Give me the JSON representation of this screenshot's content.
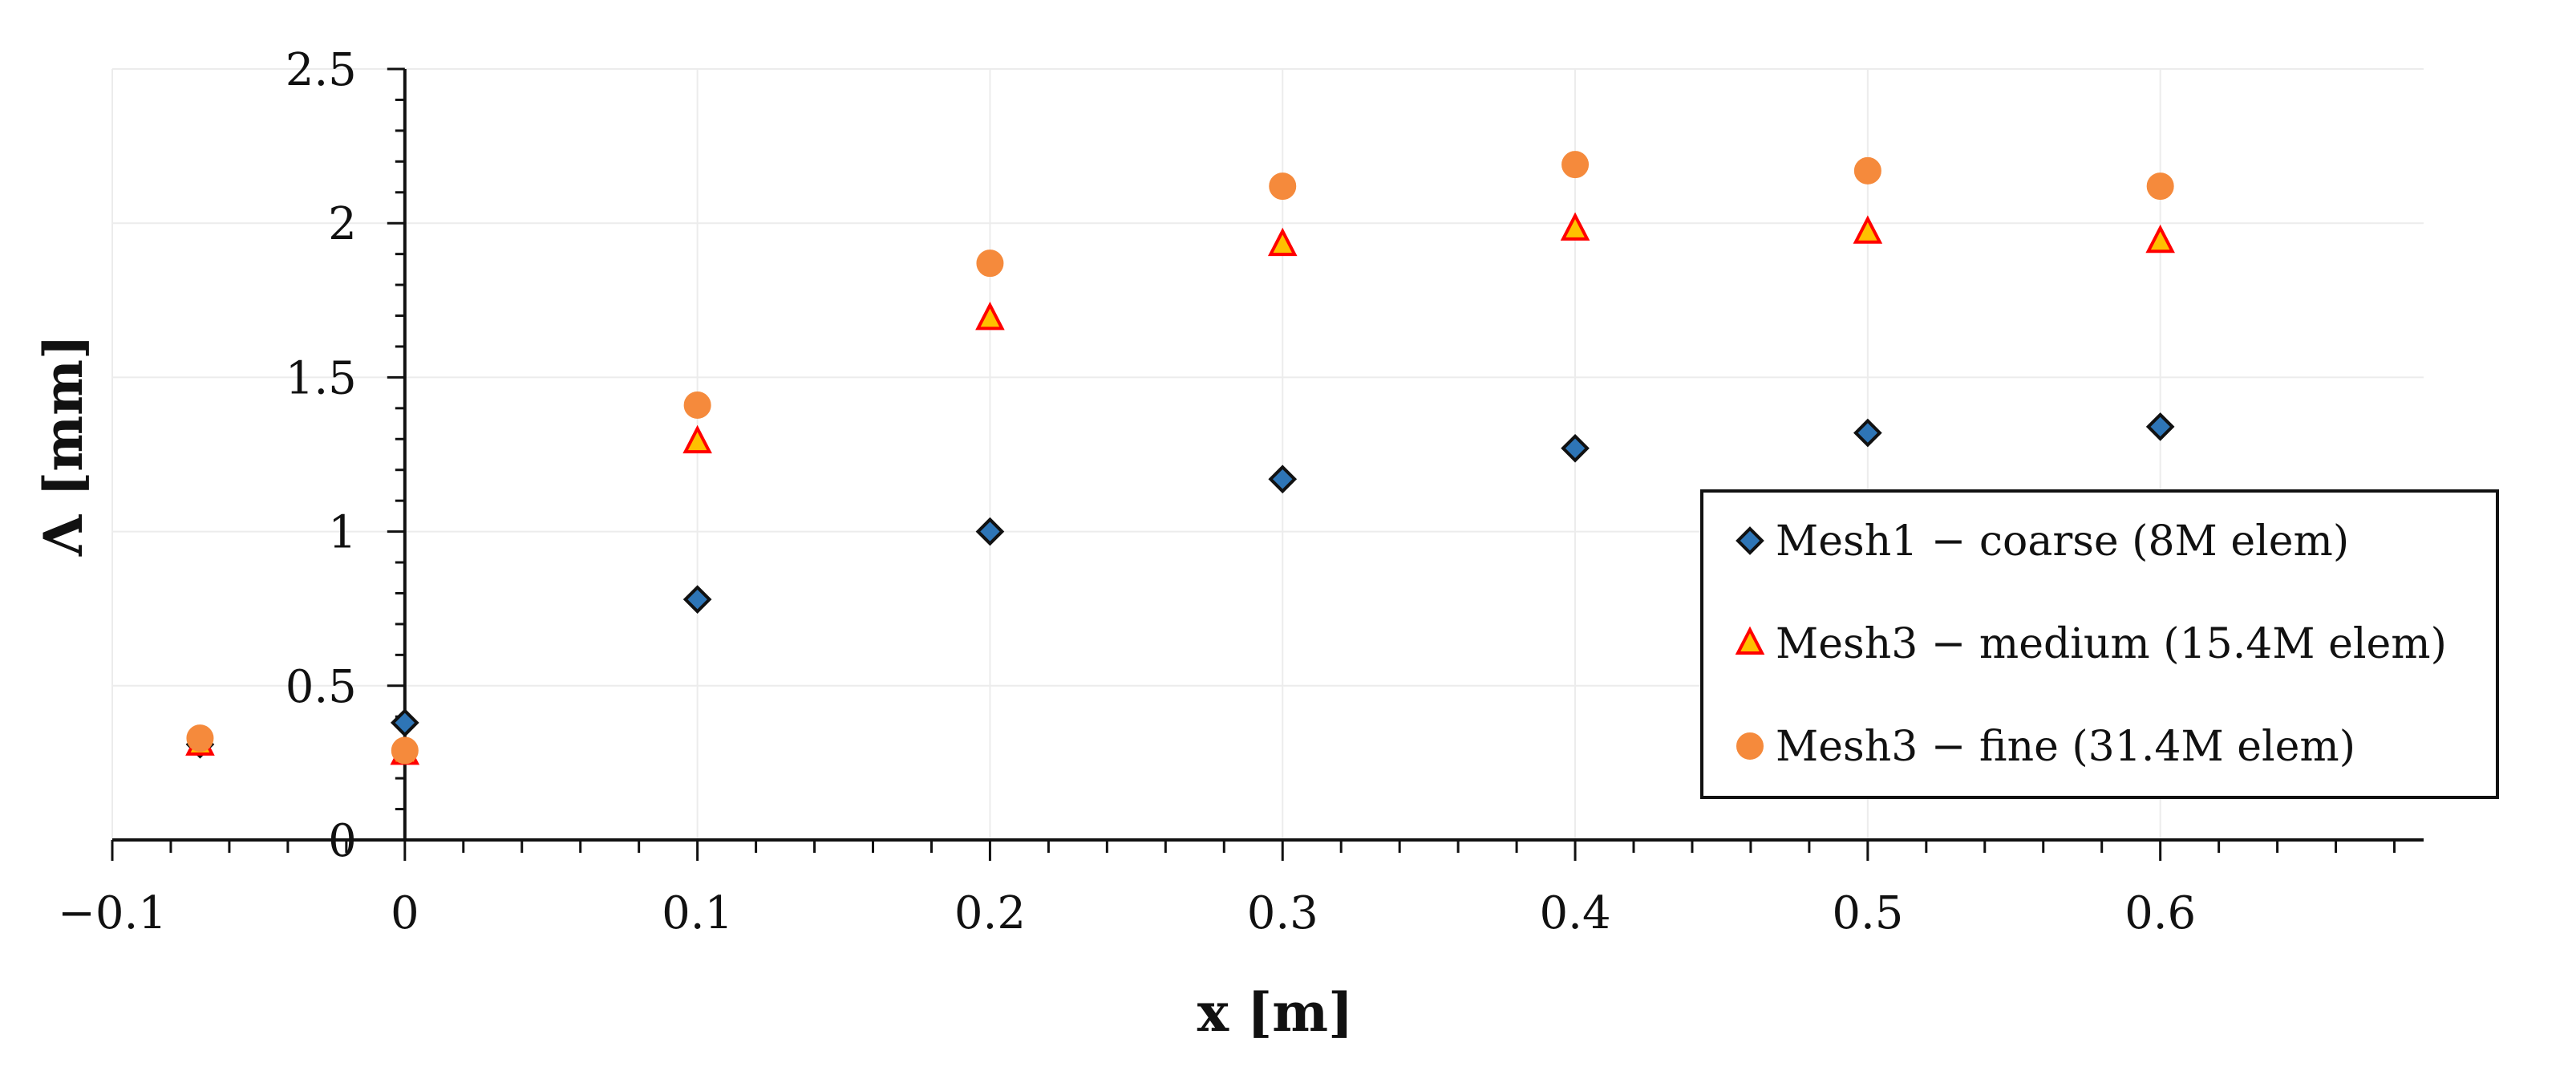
{
  "chart_data": {
    "type": "scatter",
    "title": "",
    "xlabel": "x [m]",
    "ylabel": "Λ [mm]",
    "xlim": [
      -0.1,
      0.69
    ],
    "ylim": [
      0,
      2.5
    ],
    "x_ticks": [
      -0.1,
      0,
      0.1,
      0.2,
      0.3,
      0.4,
      0.5,
      0.6
    ],
    "x_tick_labels": [
      "−0.1",
      "0",
      "0.1",
      "0.2",
      "0.3",
      "0.4",
      "0.5",
      "0.6"
    ],
    "y_ticks": [
      0,
      0.5,
      1,
      1.5,
      2,
      2.5
    ],
    "y_tick_labels": [
      "0",
      "0.5",
      "1",
      "1.5",
      "2",
      "2.5"
    ],
    "grid": true,
    "legend_position": "right",
    "series": [
      {
        "name": "Mesh1 − coarse (8M elem)",
        "marker": "diamond",
        "color": "#2E75B6",
        "edge_color": "#111111",
        "points": [
          {
            "x": -0.07,
            "y": 0.31
          },
          {
            "x": 0.0,
            "y": 0.38
          },
          {
            "x": 0.1,
            "y": 0.78
          },
          {
            "x": 0.2,
            "y": 1.0
          },
          {
            "x": 0.3,
            "y": 1.17
          },
          {
            "x": 0.4,
            "y": 1.27
          },
          {
            "x": 0.5,
            "y": 1.32
          },
          {
            "x": 0.6,
            "y": 1.34
          }
        ]
      },
      {
        "name": "Mesh3 − medium (15.4M elem)",
        "marker": "triangle",
        "color": "#FFC000",
        "edge_color": "#FF0000",
        "points": [
          {
            "x": -0.07,
            "y": 0.31
          },
          {
            "x": 0.0,
            "y": 0.28
          },
          {
            "x": 0.1,
            "y": 1.29
          },
          {
            "x": 0.2,
            "y": 1.69
          },
          {
            "x": 0.3,
            "y": 1.93
          },
          {
            "x": 0.4,
            "y": 1.98
          },
          {
            "x": 0.5,
            "y": 1.97
          },
          {
            "x": 0.6,
            "y": 1.94
          }
        ]
      },
      {
        "name": "Mesh3 − fine (31.4M elem)",
        "marker": "circle",
        "color": "#F58A3C",
        "edge_color": "#F58A3C",
        "points": [
          {
            "x": -0.07,
            "y": 0.33
          },
          {
            "x": 0.0,
            "y": 0.29
          },
          {
            "x": 0.1,
            "y": 1.41
          },
          {
            "x": 0.2,
            "y": 1.87
          },
          {
            "x": 0.3,
            "y": 2.12
          },
          {
            "x": 0.4,
            "y": 2.19
          },
          {
            "x": 0.5,
            "y": 2.17
          },
          {
            "x": 0.6,
            "y": 2.12
          }
        ]
      }
    ]
  }
}
